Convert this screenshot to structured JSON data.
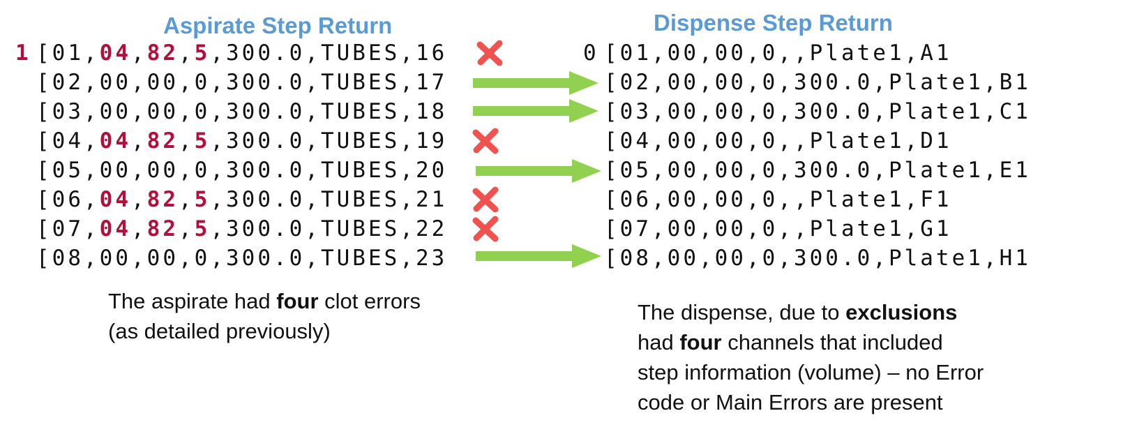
{
  "aspirate": {
    "title": "Aspirate Step Return",
    "status": "1",
    "rows": [
      {
        "ch": "[01,",
        "e1": "04",
        "s1": ",",
        "e2": "82",
        "s2": ",",
        "e3": "5",
        "rest": ",300.0,TUBES,16",
        "result": "error"
      },
      {
        "ch": "[02,",
        "e1": "00",
        "s1": ",",
        "e2": "00",
        "s2": ",",
        "e3": "0",
        "rest": ",300.0,TUBES,17",
        "result": "ok"
      },
      {
        "ch": "[03,",
        "e1": "00",
        "s1": ",",
        "e2": "00",
        "s2": ",",
        "e3": "0",
        "rest": ",300.0,TUBES,18",
        "result": "ok"
      },
      {
        "ch": "[04,",
        "e1": "04",
        "s1": ",",
        "e2": "82",
        "s2": ",",
        "e3": "5",
        "rest": ",300.0,TUBES,19",
        "result": "error"
      },
      {
        "ch": "[05,",
        "e1": "00",
        "s1": ",",
        "e2": "00",
        "s2": ",",
        "e3": "0",
        "rest": ",300.0,TUBES,20",
        "result": "ok"
      },
      {
        "ch": "[06,",
        "e1": "04",
        "s1": ",",
        "e2": "82",
        "s2": ",",
        "e3": "5",
        "rest": ",300.0,TUBES,21",
        "result": "error"
      },
      {
        "ch": "[07,",
        "e1": "04",
        "s1": ",",
        "e2": "82",
        "s2": ",",
        "e3": "5",
        "rest": ",300.0,TUBES,22",
        "result": "error"
      },
      {
        "ch": "[08,",
        "e1": "00",
        "s1": ",",
        "e2": "00",
        "s2": ",",
        "e3": "0",
        "rest": ",300.0,TUBES,23",
        "result": "ok"
      }
    ],
    "note_line1_pre": "The aspirate had ",
    "note_line1_bold": "four",
    "note_line1_post": " clot errors",
    "note_line2": "(as detailed previously)"
  },
  "dispense": {
    "title": "Dispense Step Return",
    "status": "0",
    "rows": [
      "[01,00,00,0,,Plate1,A1",
      "[02,00,00,0,300.0,Plate1,B1",
      "[03,00,00,0,300.0,Plate1,C1",
      "[04,00,00,0,,Plate1,D1",
      "[05,00,00,0,300.0,Plate1,E1",
      "[06,00,00,0,,Plate1,F1",
      "[07,00,00,0,,Plate1,G1",
      "[08,00,00,0,300.0,Plate1,H1"
    ],
    "note_l1_pre": "The dispense, due to ",
    "note_l1_bold": "exclusions",
    "note_l2_pre": "had ",
    "note_l2_bold": "four",
    "note_l2_post": " channels that included",
    "note_l3": "step information (volume) – no Error",
    "note_l4": "code or Main Errors are present"
  },
  "colors": {
    "heading": "#5b9bd5",
    "error_text": "#b0103a",
    "error_mark": "#f0524f",
    "arrow": "#92d050"
  }
}
